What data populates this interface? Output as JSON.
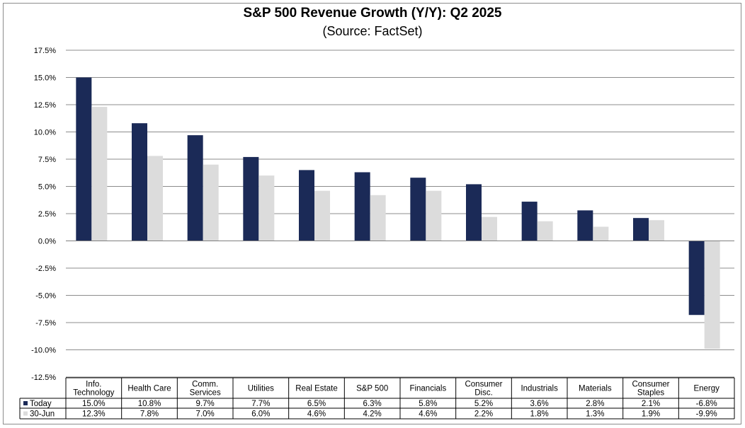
{
  "chart_data": {
    "type": "bar",
    "title": "S&P 500 Revenue Growth (Y/Y): Q2 2025",
    "subtitle": "(Source: FactSet)",
    "categories": [
      [
        "Info.",
        "Technology"
      ],
      [
        "Health Care"
      ],
      [
        "Comm.",
        "Services"
      ],
      [
        "Utilities"
      ],
      [
        "Real Estate"
      ],
      [
        "S&P 500"
      ],
      [
        "Financials"
      ],
      [
        "Consumer",
        "Disc."
      ],
      [
        "Industrials"
      ],
      [
        "Materials"
      ],
      [
        "Consumer",
        "Staples"
      ],
      [
        "Energy"
      ]
    ],
    "series": [
      {
        "name": "Today",
        "color": "#1b2a57",
        "values": [
          15.0,
          10.8,
          9.7,
          7.7,
          6.5,
          6.3,
          5.8,
          5.2,
          3.6,
          2.8,
          2.1,
          -6.8
        ],
        "labels": [
          "15.0%",
          "10.8%",
          "9.7%",
          "7.7%",
          "6.5%",
          "6.3%",
          "5.8%",
          "5.2%",
          "3.6%",
          "2.8%",
          "2.1%",
          "-6.8%"
        ]
      },
      {
        "name": "30-Jun",
        "color": "#dcdcdc",
        "values": [
          12.3,
          7.8,
          7.0,
          6.0,
          4.6,
          4.2,
          4.6,
          2.2,
          1.8,
          1.3,
          1.9,
          -9.9
        ],
        "labels": [
          "12.3%",
          "7.8%",
          "7.0%",
          "6.0%",
          "4.6%",
          "4.2%",
          "4.6%",
          "2.2%",
          "1.8%",
          "1.3%",
          "1.9%",
          "-9.9%"
        ]
      }
    ],
    "ylim": [
      -12.5,
      17.5
    ],
    "yticks": [
      17.5,
      15.0,
      12.5,
      10.0,
      7.5,
      5.0,
      2.5,
      0.0,
      -2.5,
      -5.0,
      -7.5,
      -10.0,
      -12.5
    ],
    "ytick_labels": [
      "17.5%",
      "15.0%",
      "12.5%",
      "10.0%",
      "7.5%",
      "5.0%",
      "2.5%",
      "0.0%",
      "-2.5%",
      "-5.0%",
      "-7.5%",
      "-10.0%",
      "-12.5%"
    ],
    "grid": true,
    "legend": "data table below chart"
  }
}
